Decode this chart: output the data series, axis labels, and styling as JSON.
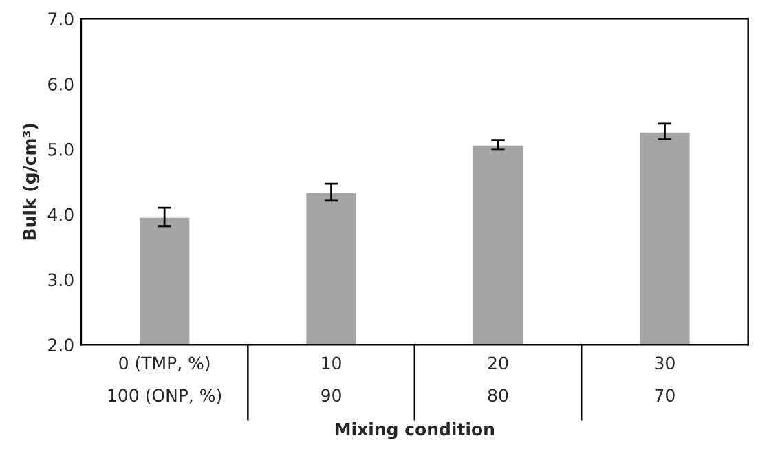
{
  "chart_data": {
    "type": "bar",
    "xlabel": "Mixing condition",
    "ylabel": "Bulk (g/cm³)",
    "categories": [
      "0 (TMP, %)\n100 (ONP, %)",
      "10\n90",
      "20\n80",
      "30\n70"
    ],
    "values": [
      3.96,
      4.34,
      5.07,
      5.27
    ],
    "errors": [
      0.14,
      0.13,
      0.07,
      0.12
    ],
    "color": "#a5a5a5",
    "ylim": [
      2,
      7
    ],
    "yticks": [
      {
        "value": 2,
        "label": "2.0"
      },
      {
        "value": 3,
        "label": "3.0"
      },
      {
        "value": 4,
        "label": "4.0"
      },
      {
        "value": 5,
        "label": "5.0"
      },
      {
        "value": 6,
        "label": "6.0"
      },
      {
        "value": 7,
        "label": "7.0"
      }
    ],
    "grid": false
  }
}
